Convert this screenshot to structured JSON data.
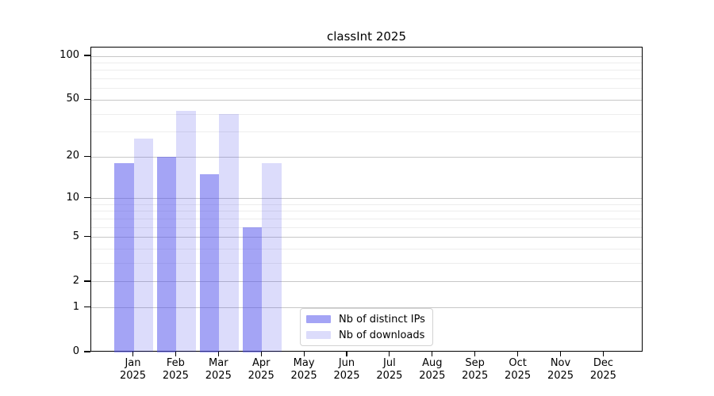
{
  "chart_data": {
    "type": "bar",
    "title": "classInt 2025",
    "categories": [
      "Jan",
      "Feb",
      "Mar",
      "Apr",
      "May",
      "Jun",
      "Jul",
      "Aug",
      "Sep",
      "Oct",
      "Nov",
      "Dec"
    ],
    "x_tick_year": "2025",
    "scale": "log1p",
    "ylim": [
      0,
      100
    ],
    "y_ticks": [
      0,
      1,
      2,
      5,
      10,
      20,
      50,
      100
    ],
    "minor_gridlines": [
      3,
      4,
      6,
      7,
      8,
      9,
      30,
      40,
      60,
      70,
      80,
      90
    ],
    "grid": true,
    "legend_position": "bottom-center",
    "series": [
      {
        "name": "Nb of distinct IPs",
        "fill": "rgba(80,80,235,0.52)",
        "color_hex": "#a6a6f1",
        "values": [
          18,
          20,
          15,
          6,
          null,
          null,
          null,
          null,
          null,
          null,
          null,
          null
        ]
      },
      {
        "name": "Nb of downloads",
        "fill": "rgba(80,80,235,0.20)",
        "color_hex": "#dcdcf8",
        "values": [
          27,
          42,
          40,
          18,
          null,
          null,
          null,
          null,
          null,
          null,
          null,
          null
        ]
      }
    ],
    "axis_color": "#000000",
    "major_grid_color": "#c7c7c7",
    "minor_grid_color": "#ededed"
  }
}
